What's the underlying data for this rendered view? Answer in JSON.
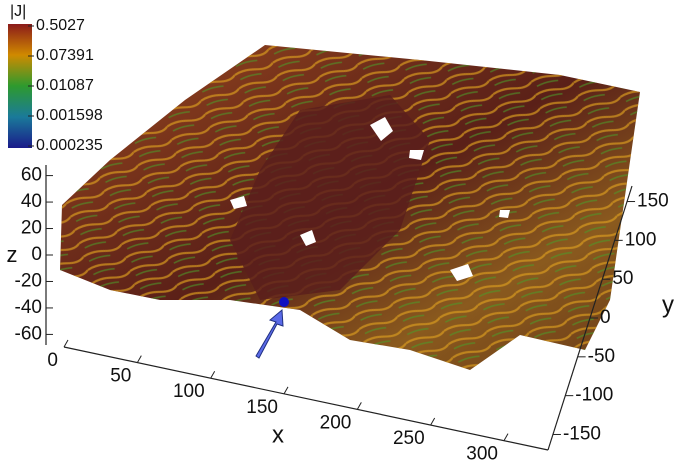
{
  "chart_data": {
    "type": "volume",
    "colorbar": {
      "title": "|J|",
      "log": true,
      "clim": [
        0.000235,
        0.5027
      ],
      "ticks": [
        0.5027,
        0.07391,
        0.01087,
        0.001598,
        0.000235
      ],
      "colors": [
        "#8b1a1a",
        "#d08a00",
        "#2e9a2e",
        "#1a7a9a",
        "#1a1a8a"
      ]
    },
    "x_label": "x",
    "y_label": "y",
    "z_label": "z",
    "xlim": [
      0,
      330
    ],
    "xticks": [
      0,
      50,
      100,
      150,
      200,
      250,
      300
    ],
    "ylim": [
      -170,
      170
    ],
    "yticks": [
      -150,
      -100,
      -50,
      0,
      50,
      100,
      150
    ],
    "zlim": [
      -68,
      68
    ],
    "zticks": [
      60,
      40,
      20,
      0,
      -20,
      -40,
      -60
    ]
  }
}
